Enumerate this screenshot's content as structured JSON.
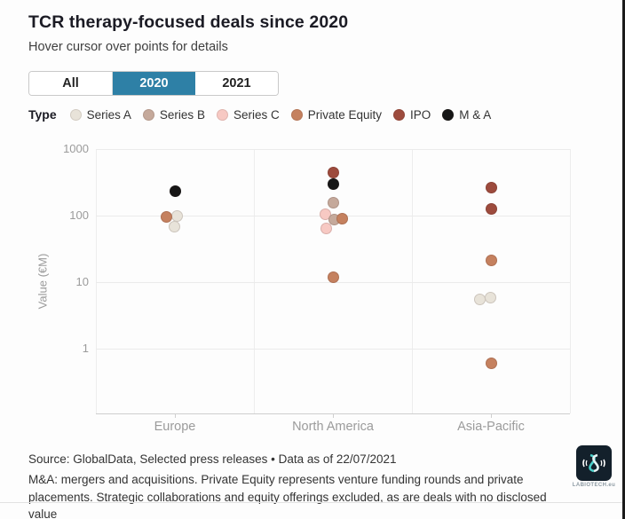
{
  "header": {
    "title": "TCR therapy-focused deals since 2020",
    "subtitle": "Hover cursor over points for details",
    "accent_color": "#2e80a6",
    "tabs": [
      {
        "label": "All",
        "active": false
      },
      {
        "label": "2020",
        "active": true
      },
      {
        "label": "2021",
        "active": false
      }
    ],
    "legend_label": "Type"
  },
  "chart_data": {
    "type": "scatter",
    "title": "TCR therapy-focused deals since 2020",
    "xlabel": "",
    "ylabel": "Value (€M)",
    "y_scale": "log",
    "y_ticks": [
      1000,
      100,
      10,
      1
    ],
    "ylim": [
      0.1,
      1000
    ],
    "grid": true,
    "legend_position": "top",
    "categories": [
      "Europe",
      "North America",
      "Asia-Pacific"
    ],
    "legend": [
      {
        "name": "Series A",
        "color": "#e8e3d9"
      },
      {
        "name": "Series B",
        "color": "#c5a99b"
      },
      {
        "name": "Series C",
        "color": "#f7c9c3"
      },
      {
        "name": "Private Equity",
        "color": "#c5815f"
      },
      {
        "name": "IPO",
        "color": "#9d4b3d"
      },
      {
        "name": "M & A",
        "color": "#161616"
      }
    ],
    "points": [
      {
        "category": "Europe",
        "type": "M & A",
        "value": 230,
        "dx": 0
      },
      {
        "category": "Europe",
        "type": "Series A",
        "value": 98,
        "dx": 2
      },
      {
        "category": "Europe",
        "type": "Series A",
        "value": 68,
        "dx": -1
      },
      {
        "category": "Europe",
        "type": "Private Equity",
        "value": 95,
        "dx": -10
      },
      {
        "category": "North America",
        "type": "IPO",
        "value": 450,
        "dx": 0
      },
      {
        "category": "North America",
        "type": "M & A",
        "value": 300,
        "dx": 0
      },
      {
        "category": "North America",
        "type": "Series B",
        "value": 155,
        "dx": 0
      },
      {
        "category": "North America",
        "type": "Series C",
        "value": 105,
        "dx": -9
      },
      {
        "category": "North America",
        "type": "Series B",
        "value": 87,
        "dx": 1
      },
      {
        "category": "North America",
        "type": "Private Equity",
        "value": 90,
        "dx": 10
      },
      {
        "category": "North America",
        "type": "Series C",
        "value": 65,
        "dx": -8
      },
      {
        "category": "North America",
        "type": "Private Equity",
        "value": 12,
        "dx": 0
      },
      {
        "category": "Asia-Pacific",
        "type": "IPO",
        "value": 260,
        "dx": 0
      },
      {
        "category": "Asia-Pacific",
        "type": "IPO",
        "value": 125,
        "dx": 0
      },
      {
        "category": "Asia-Pacific",
        "type": "Private Equity",
        "value": 21,
        "dx": 0
      },
      {
        "category": "Asia-Pacific",
        "type": "Series A",
        "value": 5.5,
        "dx": -13
      },
      {
        "category": "Asia-Pacific",
        "type": "Series A",
        "value": 5.8,
        "dx": -1
      },
      {
        "category": "Asia-Pacific",
        "type": "Private Equity",
        "value": 0.6,
        "dx": 0
      }
    ]
  },
  "footer": {
    "source": "Source: GlobalData, Selected press releases • Data as of 22/07/2021",
    "note": "M&A: mergers and acquisitions. Private Equity represents venture funding rounds and private placements. Strategic collaborations and equity offerings excluded, as are deals with no disclosed value",
    "logo_caption": "LABIOTECH.eu"
  }
}
